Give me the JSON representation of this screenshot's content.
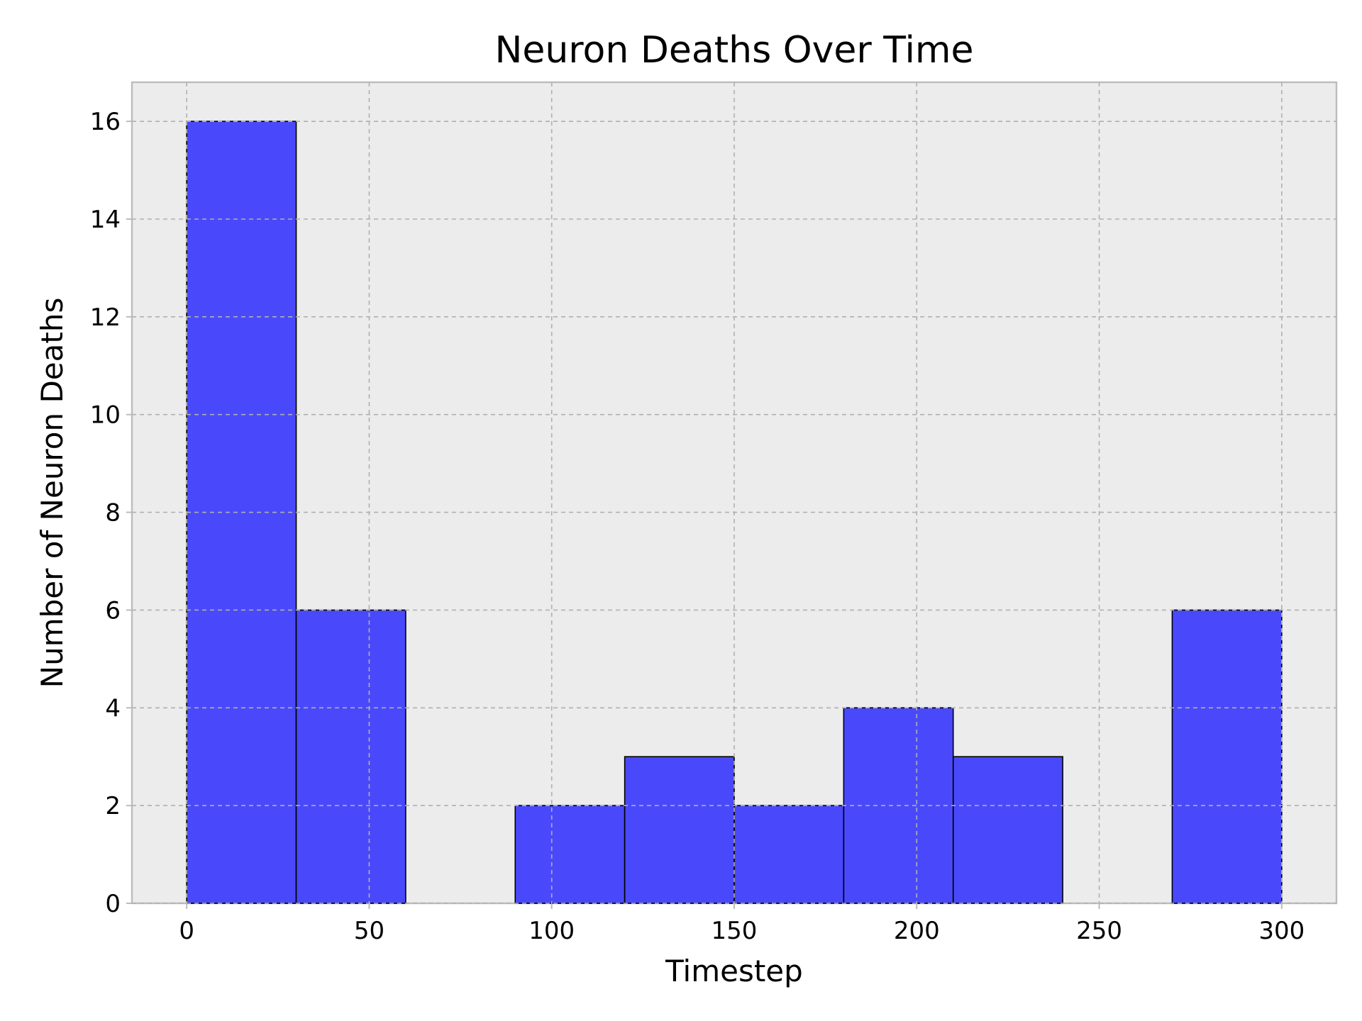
{
  "chart_data": {
    "type": "bar",
    "title": "Neuron Deaths Over Time",
    "xlabel": "Timestep",
    "ylabel": "Number of Neuron Deaths",
    "bins": [
      {
        "start": 0,
        "end": 30,
        "count": 16
      },
      {
        "start": 30,
        "end": 60,
        "count": 6
      },
      {
        "start": 60,
        "end": 90,
        "count": 0
      },
      {
        "start": 90,
        "end": 120,
        "count": 2
      },
      {
        "start": 120,
        "end": 150,
        "count": 3
      },
      {
        "start": 150,
        "end": 180,
        "count": 2
      },
      {
        "start": 180,
        "end": 210,
        "count": 4
      },
      {
        "start": 210,
        "end": 240,
        "count": 3
      },
      {
        "start": 240,
        "end": 270,
        "count": 0
      },
      {
        "start": 270,
        "end": 300,
        "count": 6
      }
    ],
    "xlim": [
      -15,
      315
    ],
    "ylim": [
      0,
      16.8
    ],
    "xticks": [
      0,
      50,
      100,
      150,
      200,
      250,
      300
    ],
    "yticks": [
      0,
      2,
      4,
      6,
      8,
      10,
      12,
      14,
      16
    ],
    "grid": true,
    "bar_color": "#4949fb",
    "background_color": "#ececec"
  }
}
